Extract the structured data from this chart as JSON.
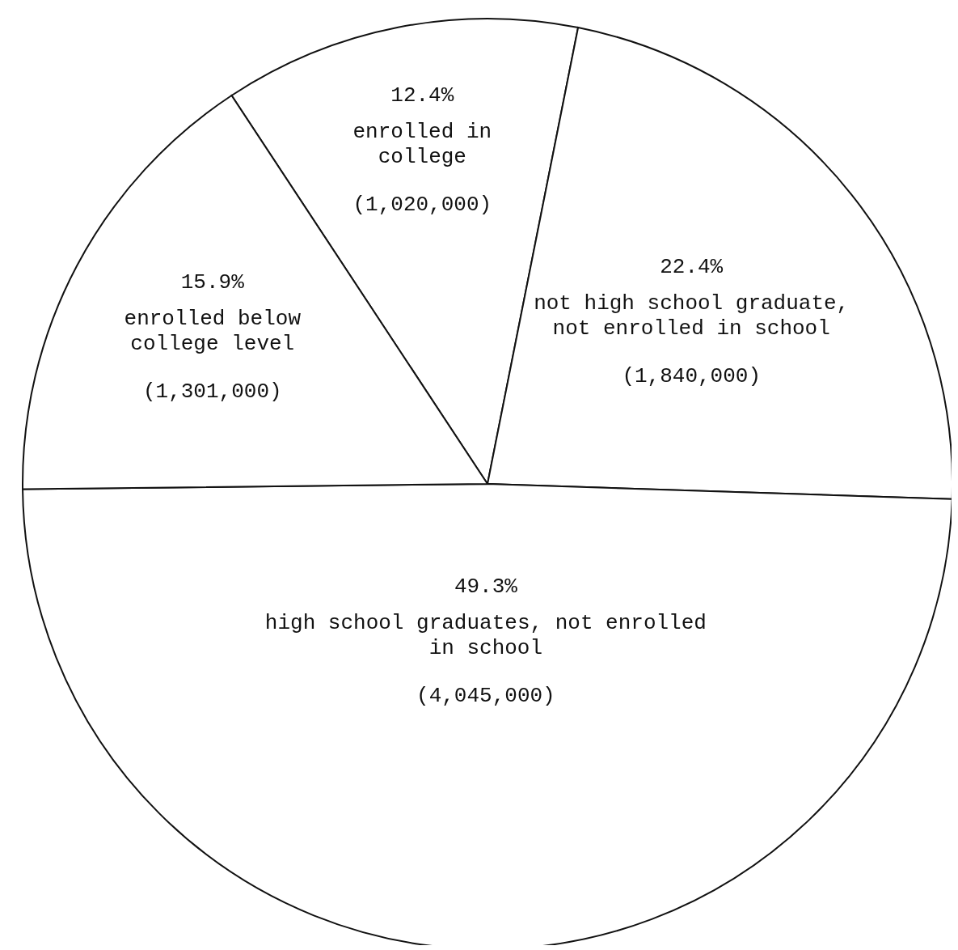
{
  "chart_data": {
    "type": "pie",
    "categories": [
      "enrolled in college",
      "not high school graduate, not enrolled in school",
      "high school graduates, not enrolled in school",
      "enrolled below college level"
    ],
    "values": [
      12.4,
      22.4,
      49.3,
      15.9
    ],
    "value_labels": [
      "12.4%",
      "22.4%",
      "49.3%",
      "15.9%"
    ],
    "colors": [
      "#ffffff",
      "#ffffff",
      "#ffffff",
      "#ffffff"
    ],
    "annotations": [
      "(1,020,000)",
      "(1,840,000)",
      "(4,045,000)",
      "(1,301,000)"
    ]
  }
}
